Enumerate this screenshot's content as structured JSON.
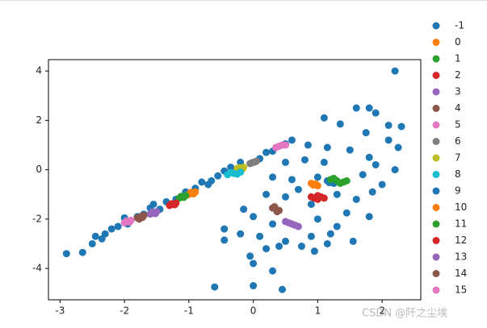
{
  "chart_data": {
    "type": "scatter",
    "xlim": [
      -3.18,
      2.6
    ],
    "ylim": [
      -5.27,
      4.46
    ],
    "xticks": [
      -3,
      -2,
      -1,
      0,
      1,
      2
    ],
    "yticks": [
      -4,
      -2,
      0,
      2,
      4
    ],
    "legend": "outside-right",
    "grid": false,
    "series": [
      {
        "name": "-1",
        "color": "#1f77b4",
        "x": [
          -2.9,
          -2.65,
          -2.5,
          -2.45,
          -2.3,
          -2.2,
          -2.1,
          -1.95,
          -1.8,
          -1.7,
          -1.6,
          -1.45,
          -1.35,
          -1.2,
          -1.05,
          -0.9,
          -0.8,
          -0.65,
          -0.55,
          -0.45,
          -0.35,
          -0.2,
          0.1,
          0.2,
          0.3,
          0.5,
          -2.0,
          -1.55,
          -0.7,
          -2.35,
          2.2,
          1.1,
          1.35,
          1.6,
          1.8,
          1.9,
          2.1,
          2.3,
          1.75,
          2.1,
          2.25,
          2.2,
          0.6,
          0.85,
          1.15,
          1.5,
          1.8,
          0.5,
          0.8,
          1.9,
          0.3,
          0.6,
          1.7,
          2.0,
          1.85,
          1.6,
          0.2,
          0.5,
          -0.15,
          0.0,
          1.45,
          1.8,
          0.3,
          1.0,
          1.3,
          -0.45,
          -0.2,
          0.1,
          0.5,
          0.9,
          1.2,
          1.55,
          -0.45,
          0.2,
          -0.05,
          0.4,
          0.75,
          1.15,
          0.0,
          0.3,
          0.95,
          -0.6,
          0.0,
          0.45,
          1.0,
          0.9,
          0.7,
          1.3,
          1.1
        ],
        "y": [
          -3.4,
          -3.35,
          -3.0,
          -2.7,
          -2.6,
          -2.4,
          -2.3,
          -2.2,
          -1.9,
          -1.8,
          -1.55,
          -1.6,
          -1.3,
          -1.2,
          -0.9,
          -0.75,
          -0.5,
          -0.45,
          -0.25,
          -0.05,
          0.1,
          0.3,
          0.45,
          0.7,
          0.75,
          1.05,
          -1.95,
          -1.4,
          -0.6,
          -2.8,
          4.0,
          2.1,
          1.85,
          2.5,
          2.5,
          2.3,
          1.8,
          1.75,
          1.5,
          1.2,
          0.9,
          0.0,
          1.2,
          1.0,
          0.9,
          0.8,
          0.5,
          0.3,
          0.4,
          0.2,
          -0.3,
          -0.4,
          -0.2,
          -0.6,
          -0.9,
          -1.2,
          -1.0,
          -1.1,
          -1.6,
          -1.9,
          -1.75,
          -1.9,
          -2.2,
          -2.0,
          -2.3,
          -2.4,
          -2.6,
          -2.7,
          -2.9,
          -2.7,
          -2.6,
          -2.9,
          -2.85,
          -3.2,
          -3.5,
          -3.1,
          -3.1,
          -3.0,
          -3.8,
          -4.1,
          -3.3,
          -4.75,
          -4.7,
          -4.85,
          -0.3,
          -1.4,
          -0.8,
          -1.0,
          0.3
        ]
      },
      {
        "name": "0",
        "color": "#ff7f0e",
        "x": [
          -1.0,
          -0.95,
          -0.9,
          -0.93,
          -0.97
        ],
        "y": [
          -1.0,
          -0.95,
          -0.9,
          -0.98,
          -0.92
        ]
      },
      {
        "name": "1",
        "color": "#2ca02c",
        "x": [
          -1.15,
          -1.1,
          -1.05,
          -1.12,
          -1.08
        ],
        "y": [
          -1.15,
          -1.1,
          -1.05,
          -1.08,
          -1.12
        ]
      },
      {
        "name": "2",
        "color": "#d62728",
        "x": [
          -1.3,
          -1.25,
          -1.2,
          -1.27,
          -1.22
        ],
        "y": [
          -1.45,
          -1.4,
          -1.35,
          -1.38,
          -1.42
        ]
      },
      {
        "name": "3",
        "color": "#9467bd",
        "x": [
          -1.6,
          -1.55,
          -1.5,
          -1.57,
          -1.52
        ],
        "y": [
          -1.8,
          -1.75,
          -1.7,
          -1.72,
          -1.78
        ]
      },
      {
        "name": "4",
        "color": "#8c564b",
        "x": [
          -1.8,
          -1.75,
          -1.7,
          -1.77,
          -1.72
        ],
        "y": [
          -1.95,
          -1.9,
          -1.85,
          -2.0,
          -1.93
        ]
      },
      {
        "name": "5",
        "color": "#e377c2",
        "x": [
          -2.0,
          -1.95,
          -1.9,
          -1.97,
          -1.92
        ],
        "y": [
          -2.15,
          -2.1,
          -2.05,
          -2.08,
          -2.12
        ]
      },
      {
        "name": "6",
        "color": "#7f7f7f",
        "x": [
          -0.05,
          0.0,
          0.05,
          -0.02,
          0.03
        ],
        "y": [
          0.25,
          0.3,
          0.35,
          0.28,
          0.32
        ]
      },
      {
        "name": "7",
        "color": "#bcbd22",
        "x": [
          -0.25,
          -0.2,
          -0.15,
          -0.22,
          -0.17
        ],
        "y": [
          0.05,
          0.0,
          0.1,
          0.08,
          0.02
        ]
      },
      {
        "name": "8",
        "color": "#17becf",
        "x": [
          -0.4,
          -0.3,
          -0.2,
          -0.35,
          -0.25
        ],
        "y": [
          -0.2,
          -0.15,
          -0.1,
          -0.12,
          -0.18
        ]
      },
      {
        "name": "9",
        "color": "#1f77b4",
        "x": [
          1.15,
          1.2,
          1.25,
          1.18,
          1.22
        ],
        "y": [
          -0.45,
          -0.5,
          -0.55,
          -0.52,
          -0.48
        ]
      },
      {
        "name": "10",
        "color": "#ff7f0e",
        "x": [
          0.9,
          0.95,
          1.0,
          0.93,
          0.97
        ],
        "y": [
          -0.55,
          -0.6,
          -0.65,
          -0.62,
          -0.58
        ]
      },
      {
        "name": "11",
        "color": "#2ca02c",
        "x": [
          1.2,
          1.3,
          1.4,
          1.25,
          1.35,
          1.45
        ],
        "y": [
          -0.4,
          -0.45,
          -0.5,
          -0.35,
          -0.55,
          -0.45
        ]
      },
      {
        "name": "12",
        "color": "#d62728",
        "x": [
          0.9,
          0.95,
          1.0,
          1.05,
          1.1,
          1.0
        ],
        "y": [
          -1.1,
          -1.15,
          -1.2,
          -1.1,
          -1.15,
          -1.05
        ]
      },
      {
        "name": "13",
        "color": "#9467bd",
        "x": [
          0.5,
          0.55,
          0.6,
          0.65,
          0.7
        ],
        "y": [
          -2.1,
          -2.15,
          -2.2,
          -2.25,
          -2.3
        ]
      },
      {
        "name": "14",
        "color": "#8c564b",
        "x": [
          0.3,
          0.35,
          0.4,
          0.33,
          0.37
        ],
        "y": [
          -1.55,
          -1.6,
          -1.65,
          -1.5,
          -1.7
        ]
      },
      {
        "name": "15",
        "color": "#e377c2",
        "x": [
          0.35,
          0.4,
          0.45,
          0.5
        ],
        "y": [
          0.9,
          0.95,
          1.0,
          1.0
        ]
      }
    ]
  },
  "watermark": "CSDN @阡之尘埃"
}
